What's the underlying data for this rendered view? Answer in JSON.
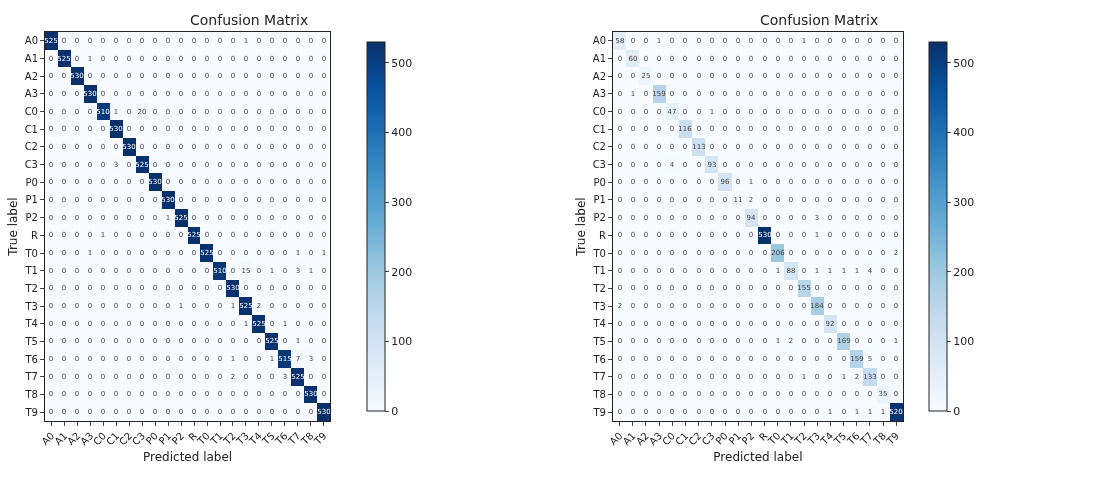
{
  "chart_data": [
    {
      "type": "heatmap",
      "title": "Confusion Matrix",
      "xlabel": "Predicted label",
      "ylabel": "True label",
      "categories": [
        "A0",
        "A1",
        "A2",
        "A3",
        "C0",
        "C1",
        "C2",
        "C3",
        "P0",
        "P1",
        "P2",
        "R",
        "T0",
        "T1",
        "T2",
        "T3",
        "T4",
        "T5",
        "T6",
        "T7",
        "T8",
        "T9"
      ],
      "y_categories": [
        "A0",
        "A1",
        "A2",
        "A3",
        "C0",
        "C1",
        "C2",
        "C3",
        "P0",
        "P1",
        "P2",
        "R",
        "T0",
        "T1",
        "T2",
        "T3",
        "T4",
        "T5",
        "T6",
        "T7",
        "T8",
        "T9"
      ],
      "clim": [
        0,
        530
      ],
      "cticks": [
        0,
        100,
        200,
        300,
        400,
        500
      ],
      "data_labels": true,
      "cells": [
        [
          525,
          0,
          0,
          0,
          0,
          0,
          0,
          0,
          0,
          0,
          0,
          0,
          0,
          0,
          0,
          1,
          0,
          0,
          0,
          0,
          0,
          0
        ],
        [
          0,
          525,
          0,
          1,
          0,
          0,
          0,
          0,
          0,
          0,
          0,
          0,
          0,
          0,
          0,
          0,
          0,
          0,
          0,
          0,
          0,
          0
        ],
        [
          0,
          0,
          530,
          0,
          0,
          0,
          0,
          0,
          0,
          0,
          0,
          0,
          0,
          0,
          0,
          0,
          0,
          0,
          0,
          0,
          0,
          0
        ],
        [
          0,
          0,
          0,
          530,
          0,
          0,
          0,
          0,
          0,
          0,
          0,
          0,
          0,
          0,
          0,
          0,
          0,
          0,
          0,
          0,
          0,
          0
        ],
        [
          0,
          0,
          0,
          0,
          510,
          1,
          0,
          20,
          0,
          0,
          0,
          0,
          0,
          0,
          0,
          0,
          0,
          0,
          0,
          0,
          0,
          0
        ],
        [
          0,
          0,
          0,
          0,
          0,
          530,
          0,
          0,
          0,
          0,
          0,
          0,
          0,
          0,
          0,
          0,
          0,
          0,
          0,
          0,
          0,
          0
        ],
        [
          0,
          0,
          0,
          0,
          0,
          0,
          530,
          0,
          0,
          0,
          0,
          0,
          0,
          0,
          0,
          0,
          0,
          0,
          0,
          0,
          0,
          0
        ],
        [
          0,
          0,
          0,
          0,
          0,
          3,
          0,
          525,
          0,
          0,
          0,
          0,
          0,
          0,
          0,
          0,
          0,
          0,
          0,
          0,
          0,
          0
        ],
        [
          0,
          0,
          0,
          0,
          0,
          0,
          0,
          0,
          530,
          0,
          0,
          0,
          0,
          0,
          0,
          0,
          0,
          0,
          0,
          0,
          0,
          0
        ],
        [
          0,
          0,
          0,
          0,
          0,
          0,
          0,
          0,
          0,
          530,
          0,
          0,
          0,
          0,
          0,
          0,
          0,
          0,
          0,
          0,
          0,
          0
        ],
        [
          0,
          0,
          0,
          0,
          0,
          0,
          0,
          0,
          0,
          1,
          525,
          0,
          0,
          0,
          0,
          0,
          0,
          0,
          0,
          0,
          0,
          0
        ],
        [
          0,
          0,
          0,
          0,
          1,
          0,
          0,
          0,
          0,
          0,
          0,
          525,
          0,
          0,
          0,
          0,
          0,
          0,
          0,
          0,
          0,
          0
        ],
        [
          0,
          0,
          0,
          1,
          0,
          0,
          0,
          0,
          0,
          0,
          0,
          0,
          525,
          0,
          0,
          0,
          0,
          0,
          0,
          1,
          0,
          1
        ],
        [
          0,
          0,
          0,
          0,
          0,
          0,
          0,
          0,
          0,
          0,
          0,
          0,
          0,
          510,
          0,
          15,
          0,
          1,
          0,
          3,
          1,
          0
        ],
        [
          0,
          0,
          0,
          0,
          0,
          0,
          0,
          0,
          0,
          0,
          0,
          0,
          0,
          0,
          530,
          0,
          0,
          0,
          0,
          0,
          0,
          0
        ],
        [
          0,
          0,
          0,
          0,
          0,
          0,
          0,
          0,
          0,
          0,
          1,
          0,
          0,
          0,
          1,
          525,
          2,
          0,
          0,
          0,
          0,
          0
        ],
        [
          0,
          0,
          0,
          0,
          0,
          0,
          0,
          0,
          0,
          0,
          0,
          0,
          0,
          0,
          0,
          1,
          525,
          0,
          1,
          0,
          0,
          0
        ],
        [
          0,
          0,
          0,
          0,
          0,
          0,
          0,
          0,
          0,
          0,
          0,
          0,
          0,
          0,
          0,
          0,
          0,
          525,
          0,
          1,
          0,
          0
        ],
        [
          0,
          0,
          0,
          0,
          0,
          0,
          0,
          0,
          0,
          0,
          0,
          0,
          0,
          0,
          1,
          0,
          0,
          1,
          515,
          7,
          3,
          0
        ],
        [
          0,
          0,
          0,
          0,
          0,
          0,
          0,
          0,
          0,
          0,
          0,
          0,
          0,
          0,
          2,
          0,
          0,
          0,
          3,
          525,
          0,
          0
        ],
        [
          0,
          0,
          0,
          0,
          0,
          0,
          0,
          0,
          0,
          0,
          0,
          0,
          0,
          0,
          0,
          0,
          0,
          0,
          0,
          0,
          530,
          0
        ],
        [
          0,
          0,
          0,
          0,
          0,
          0,
          0,
          0,
          0,
          0,
          0,
          0,
          0,
          0,
          0,
          0,
          0,
          0,
          0,
          0,
          0,
          530
        ]
      ]
    },
    {
      "type": "heatmap",
      "title": "Confusion Matrix",
      "xlabel": "Predicted label",
      "ylabel": "True label",
      "categories": [
        "A0",
        "A1",
        "A2",
        "A3",
        "C0",
        "C1",
        "C2",
        "C3",
        "P0",
        "P1",
        "P2",
        "R",
        "T0",
        "T1",
        "T2",
        "T3",
        "T4",
        "T5",
        "T6",
        "T7",
        "T8",
        "T9"
      ],
      "y_categories": [
        "A0",
        "A1",
        "A2",
        "A3",
        "C0",
        "C1",
        "C2",
        "C3",
        "P0",
        "P1",
        "P2",
        "R",
        "T0",
        "T1",
        "T2",
        "T3",
        "T4",
        "T5",
        "T6",
        "T7",
        "T8",
        "T9"
      ],
      "clim": [
        0,
        530
      ],
      "cticks": [
        0,
        100,
        200,
        300,
        400,
        500
      ],
      "data_labels": true,
      "cells": [
        [
          58,
          0,
          0,
          1,
          0,
          0,
          0,
          0,
          0,
          0,
          0,
          0,
          0,
          0,
          1,
          0,
          0,
          0,
          0,
          0,
          0,
          0
        ],
        [
          0,
          60,
          0,
          0,
          0,
          0,
          0,
          0,
          0,
          0,
          0,
          0,
          0,
          0,
          0,
          0,
          0,
          0,
          0,
          0,
          0,
          0
        ],
        [
          0,
          0,
          25,
          0,
          0,
          0,
          0,
          0,
          0,
          0,
          0,
          0,
          0,
          0,
          0,
          0,
          0,
          0,
          0,
          0,
          0,
          0
        ],
        [
          0,
          1,
          0,
          159,
          0,
          0,
          0,
          0,
          0,
          0,
          0,
          0,
          0,
          0,
          0,
          0,
          0,
          0,
          0,
          0,
          0,
          0
        ],
        [
          0,
          0,
          0,
          0,
          47,
          0,
          0,
          1,
          0,
          0,
          0,
          0,
          0,
          0,
          0,
          0,
          0,
          0,
          0,
          0,
          0,
          0
        ],
        [
          0,
          0,
          0,
          0,
          0,
          116,
          0,
          0,
          0,
          0,
          0,
          0,
          0,
          0,
          0,
          0,
          0,
          0,
          0,
          0,
          0,
          0
        ],
        [
          0,
          0,
          0,
          0,
          0,
          0,
          113,
          0,
          0,
          0,
          0,
          0,
          0,
          0,
          0,
          0,
          0,
          0,
          0,
          0,
          0,
          0
        ],
        [
          0,
          0,
          0,
          0,
          4,
          0,
          0,
          93,
          0,
          0,
          0,
          0,
          0,
          0,
          0,
          0,
          0,
          0,
          0,
          0,
          0,
          0
        ],
        [
          0,
          0,
          0,
          0,
          0,
          0,
          0,
          0,
          96,
          0,
          1,
          0,
          0,
          0,
          0,
          0,
          0,
          0,
          0,
          0,
          0,
          0
        ],
        [
          0,
          0,
          0,
          0,
          0,
          0,
          0,
          0,
          0,
          11,
          2,
          0,
          0,
          0,
          0,
          0,
          0,
          0,
          0,
          0,
          0,
          0
        ],
        [
          0,
          0,
          0,
          0,
          0,
          0,
          0,
          0,
          0,
          0,
          94,
          0,
          0,
          0,
          0,
          3,
          0,
          0,
          0,
          0,
          0,
          0
        ],
        [
          0,
          0,
          0,
          0,
          0,
          0,
          0,
          0,
          0,
          0,
          0,
          530,
          0,
          0,
          0,
          1,
          0,
          0,
          0,
          0,
          0,
          0
        ],
        [
          0,
          0,
          0,
          0,
          0,
          0,
          0,
          0,
          0,
          0,
          0,
          0,
          206,
          0,
          0,
          0,
          0,
          0,
          0,
          0,
          0,
          2
        ],
        [
          0,
          0,
          0,
          0,
          0,
          0,
          0,
          0,
          0,
          0,
          0,
          0,
          1,
          88,
          0,
          1,
          1,
          1,
          1,
          4,
          0,
          0
        ],
        [
          0,
          0,
          0,
          0,
          0,
          0,
          0,
          0,
          0,
          0,
          0,
          0,
          0,
          0,
          155,
          0,
          0,
          0,
          0,
          0,
          0,
          0
        ],
        [
          2,
          0,
          0,
          0,
          0,
          0,
          0,
          0,
          0,
          0,
          0,
          0,
          0,
          0,
          0,
          184,
          0,
          0,
          0,
          0,
          0,
          0
        ],
        [
          0,
          0,
          0,
          0,
          0,
          0,
          0,
          0,
          0,
          0,
          0,
          0,
          0,
          0,
          0,
          0,
          92,
          0,
          0,
          0,
          0,
          0
        ],
        [
          0,
          0,
          0,
          0,
          0,
          0,
          0,
          0,
          0,
          0,
          0,
          0,
          1,
          2,
          0,
          0,
          0,
          169,
          0,
          0,
          0,
          1
        ],
        [
          0,
          0,
          0,
          0,
          0,
          0,
          0,
          0,
          0,
          0,
          0,
          0,
          0,
          0,
          0,
          0,
          0,
          0,
          159,
          5,
          0,
          0
        ],
        [
          0,
          0,
          0,
          0,
          0,
          0,
          0,
          0,
          0,
          0,
          0,
          0,
          0,
          0,
          1,
          0,
          0,
          1,
          2,
          133,
          0,
          0
        ],
        [
          0,
          0,
          0,
          0,
          0,
          0,
          0,
          0,
          0,
          0,
          0,
          0,
          0,
          0,
          0,
          0,
          0,
          0,
          0,
          0,
          35,
          0
        ],
        [
          0,
          0,
          0,
          0,
          0,
          0,
          0,
          0,
          0,
          0,
          0,
          0,
          0,
          0,
          0,
          0,
          1,
          0,
          1,
          1,
          1,
          520
        ]
      ]
    }
  ]
}
